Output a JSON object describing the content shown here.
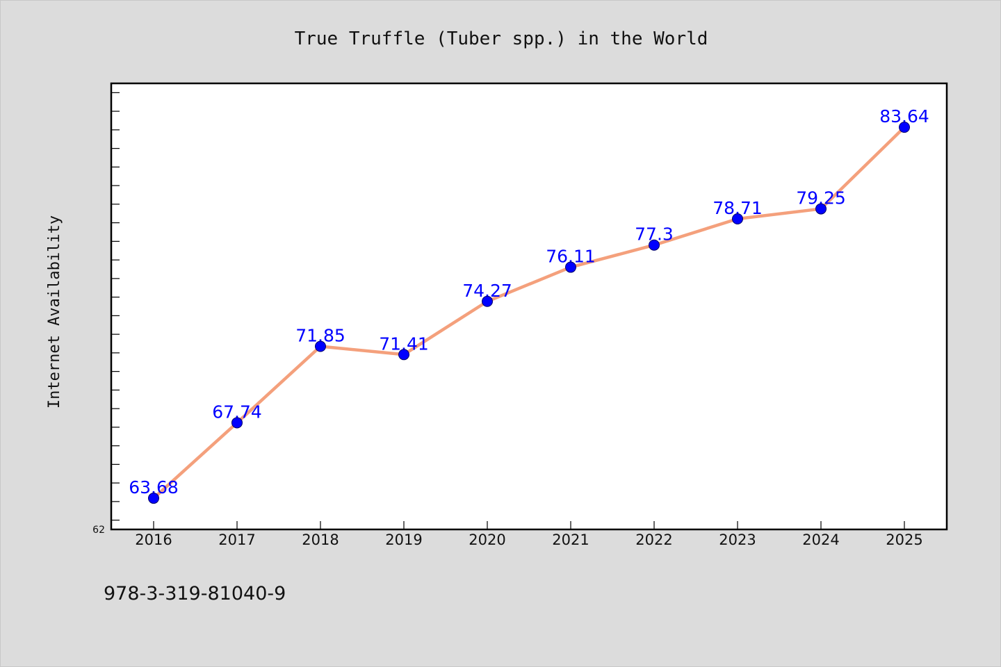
{
  "chart_data": {
    "type": "line",
    "title": "True Truffle (Tuber spp.) in the World",
    "xlabel": "",
    "ylabel": "Internet Availability",
    "categories": [
      "2016",
      "2017",
      "2018",
      "2019",
      "2020",
      "2021",
      "2022",
      "2023",
      "2024",
      "2025"
    ],
    "series": [
      {
        "values": [
          63.68,
          67.74,
          71.85,
          71.41,
          74.27,
          76.11,
          77.3,
          78.71,
          79.25,
          83.64
        ],
        "labels": [
          "63.68",
          "67.74",
          "71.85",
          "71.41",
          "74.27",
          "76.11",
          "77.3",
          "78.71",
          "79.25",
          "83.64"
        ]
      }
    ],
    "ylim": [
      62,
      86
    ],
    "ymin_label": "62",
    "grid": false,
    "legend": "none",
    "line_color": "#f4a07c",
    "marker_color": "#0000ff",
    "label_color": "#0000ff",
    "plot_background": "#ffffff",
    "figure_background": "#dcdcdc"
  },
  "footer": {
    "isbn": "978-3-319-81040-9"
  }
}
